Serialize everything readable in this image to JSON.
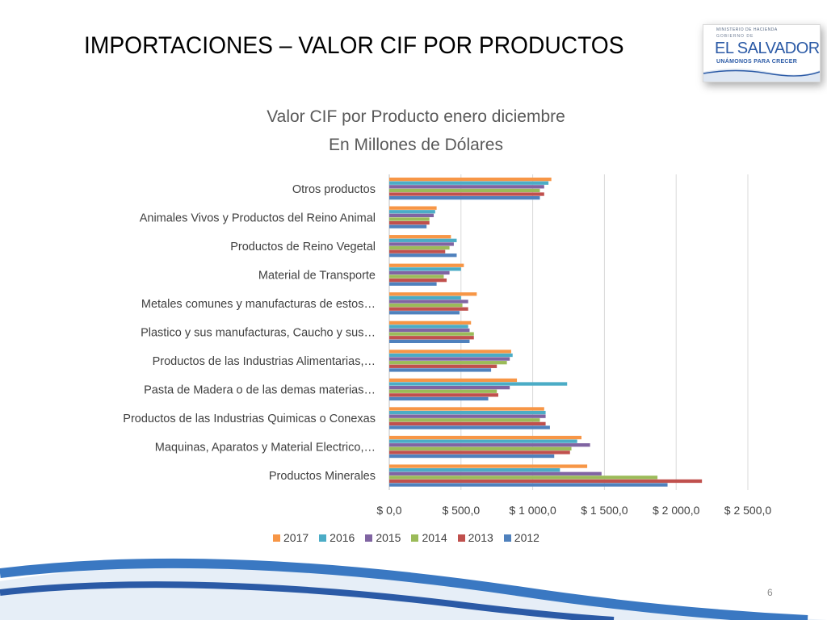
{
  "slide": {
    "title": "IMPORTACIONES – VALOR CIF POR PRODUCTOS",
    "page_number": "6"
  },
  "logo": {
    "ministry": "MINISTERIO DE HACIENDA",
    "gobierno": "GOBIERNO DE",
    "brand": "EL SALVADOR",
    "motto": "UNÁMONOS PARA CRECER"
  },
  "chart_data": {
    "type": "bar",
    "orientation": "horizontal",
    "title": "Valor CIF por Producto enero diciembre",
    "subtitle": "En Millones de Dólares",
    "xlim": [
      0,
      2500
    ],
    "xticks": [
      0,
      500,
      1000,
      1500,
      2000,
      2500
    ],
    "xtick_labels": [
      "$ 0,0",
      "$ 500,0",
      "$ 1 000,0",
      "$ 1 500,0",
      "$ 2 000,0",
      "$ 2 500,0"
    ],
    "grid": true,
    "legend_position": "bottom",
    "categories": [
      "Otros productos",
      "Animales Vivos y Productos del Reino Animal",
      "Productos de Reino Vegetal",
      "Material de Transporte",
      "Metales comunes y manufacturas de estos…",
      "Plastico y sus manufacturas, Caucho y sus…",
      "Productos de las Industrias Alimentarias,…",
      "Pasta de Madera o de las demas materias…",
      "Productos de las Industrias Quimicas o Conexas",
      "Maquinas, Aparatos y Material Electrico,…",
      "Productos Minerales"
    ],
    "series": [
      {
        "name": "2017",
        "color": "#F79646",
        "values": [
          1130,
          330,
          430,
          520,
          610,
          570,
          850,
          890,
          1080,
          1340,
          1380
        ]
      },
      {
        "name": "2016",
        "color": "#4BACC6",
        "values": [
          1110,
          320,
          470,
          500,
          500,
          550,
          860,
          1240,
          1090,
          1310,
          1190
        ]
      },
      {
        "name": "2015",
        "color": "#8064A2",
        "values": [
          1080,
          310,
          450,
          420,
          550,
          560,
          840,
          840,
          1090,
          1400,
          1480
        ]
      },
      {
        "name": "2014",
        "color": "#9BBB59",
        "values": [
          1050,
          280,
          420,
          380,
          510,
          590,
          820,
          750,
          1050,
          1270,
          1870
        ]
      },
      {
        "name": "2013",
        "color": "#C0504D",
        "values": [
          1080,
          280,
          390,
          400,
          550,
          590,
          750,
          760,
          1090,
          1260,
          2180
        ]
      },
      {
        "name": "2012",
        "color": "#4F81BD",
        "values": [
          1050,
          260,
          470,
          330,
          490,
          560,
          710,
          690,
          1120,
          1150,
          1940
        ]
      }
    ]
  }
}
